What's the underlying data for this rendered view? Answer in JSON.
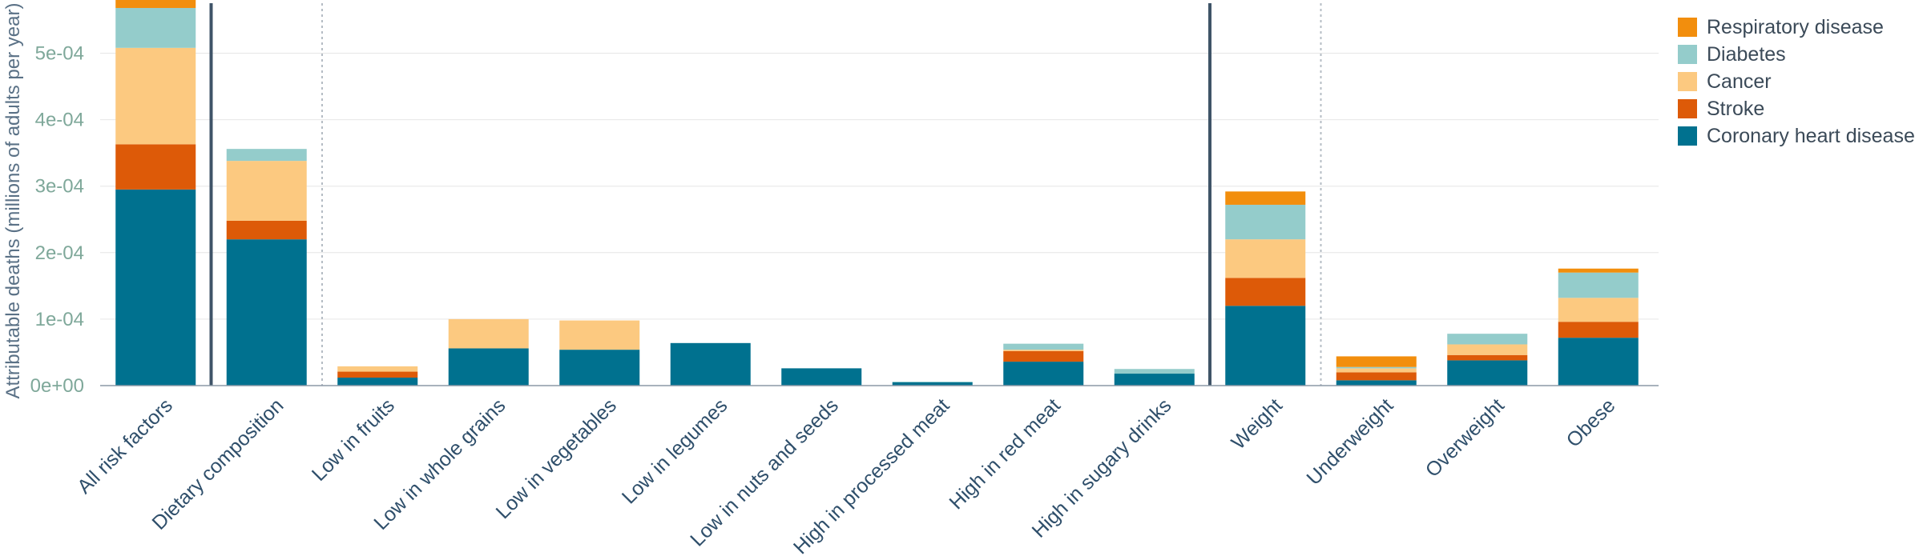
{
  "chart_data": {
    "type": "bar",
    "stacked": true,
    "ylabel": "Attributable deaths (millions of adults per year)",
    "xlabel": "",
    "ylim": [
      0,
      0.00058
    ],
    "yticks": [
      0,
      0.0001,
      0.0002,
      0.0003,
      0.0004,
      0.0005
    ],
    "ytick_labels": [
      "0e+00",
      "1e-04",
      "2e-04",
      "3e-04",
      "4e-04",
      "5e-04"
    ],
    "grid": true,
    "legend_position": "top-right",
    "categories": [
      "All risk factors",
      "Dietary composition",
      "Low in fruits",
      "Low in whole grains",
      "Low in vegetables",
      "Low in legumes",
      "Low in nuts and seeds",
      "High in processed meat",
      "High in red meat",
      "High in sugary drinks",
      "Weight",
      "Underweight",
      "Overweight",
      "Obese"
    ],
    "separators": [
      {
        "after_index": 0,
        "style": "solid"
      },
      {
        "after_index": 1,
        "style": "dotted"
      },
      {
        "after_index": 9,
        "style": "solid"
      },
      {
        "after_index": 10,
        "style": "dotted"
      }
    ],
    "series": [
      {
        "name": "Coronary heart disease",
        "color": "#00718f",
        "values": [
          0.000295,
          0.00022,
          1.2e-05,
          5.6e-05,
          5.4e-05,
          6.4e-05,
          2.6e-05,
          5e-06,
          3.6e-05,
          1.8e-05,
          0.00012,
          8e-06,
          3.8e-05,
          7.2e-05
        ]
      },
      {
        "name": "Stroke",
        "color": "#dd5a08",
        "values": [
          6.8e-05,
          2.8e-05,
          9e-06,
          0.0,
          0.0,
          0.0,
          0.0,
          0.0,
          1.6e-05,
          0.0,
          4.2e-05,
          1.2e-05,
          8e-06,
          2.4e-05
        ]
      },
      {
        "name": "Cancer",
        "color": "#fcc980",
        "values": [
          0.000145,
          9e-05,
          8e-06,
          4.4e-05,
          4.4e-05,
          0.0,
          0.0,
          0.0,
          2e-06,
          0.0,
          5.8e-05,
          6e-06,
          1.6e-05,
          3.6e-05
        ]
      },
      {
        "name": "Diabetes",
        "color": "#94cccb",
        "values": [
          6e-05,
          1.8e-05,
          0.0,
          0.0,
          0.0,
          0.0,
          0.0,
          1e-06,
          9e-06,
          7e-06,
          5.2e-05,
          2e-06,
          1.6e-05,
          3.8e-05
        ]
      },
      {
        "name": "Respiratory disease",
        "color": "#f28e0d",
        "values": [
          2.2e-05,
          0.0,
          0.0,
          0.0,
          0.0,
          0.0,
          0.0,
          0.0,
          0.0,
          0.0,
          2e-05,
          1.6e-05,
          0.0,
          6e-06
        ]
      }
    ],
    "legend_order": [
      "Respiratory disease",
      "Diabetes",
      "Cancer",
      "Stroke",
      "Coronary heart disease"
    ]
  }
}
